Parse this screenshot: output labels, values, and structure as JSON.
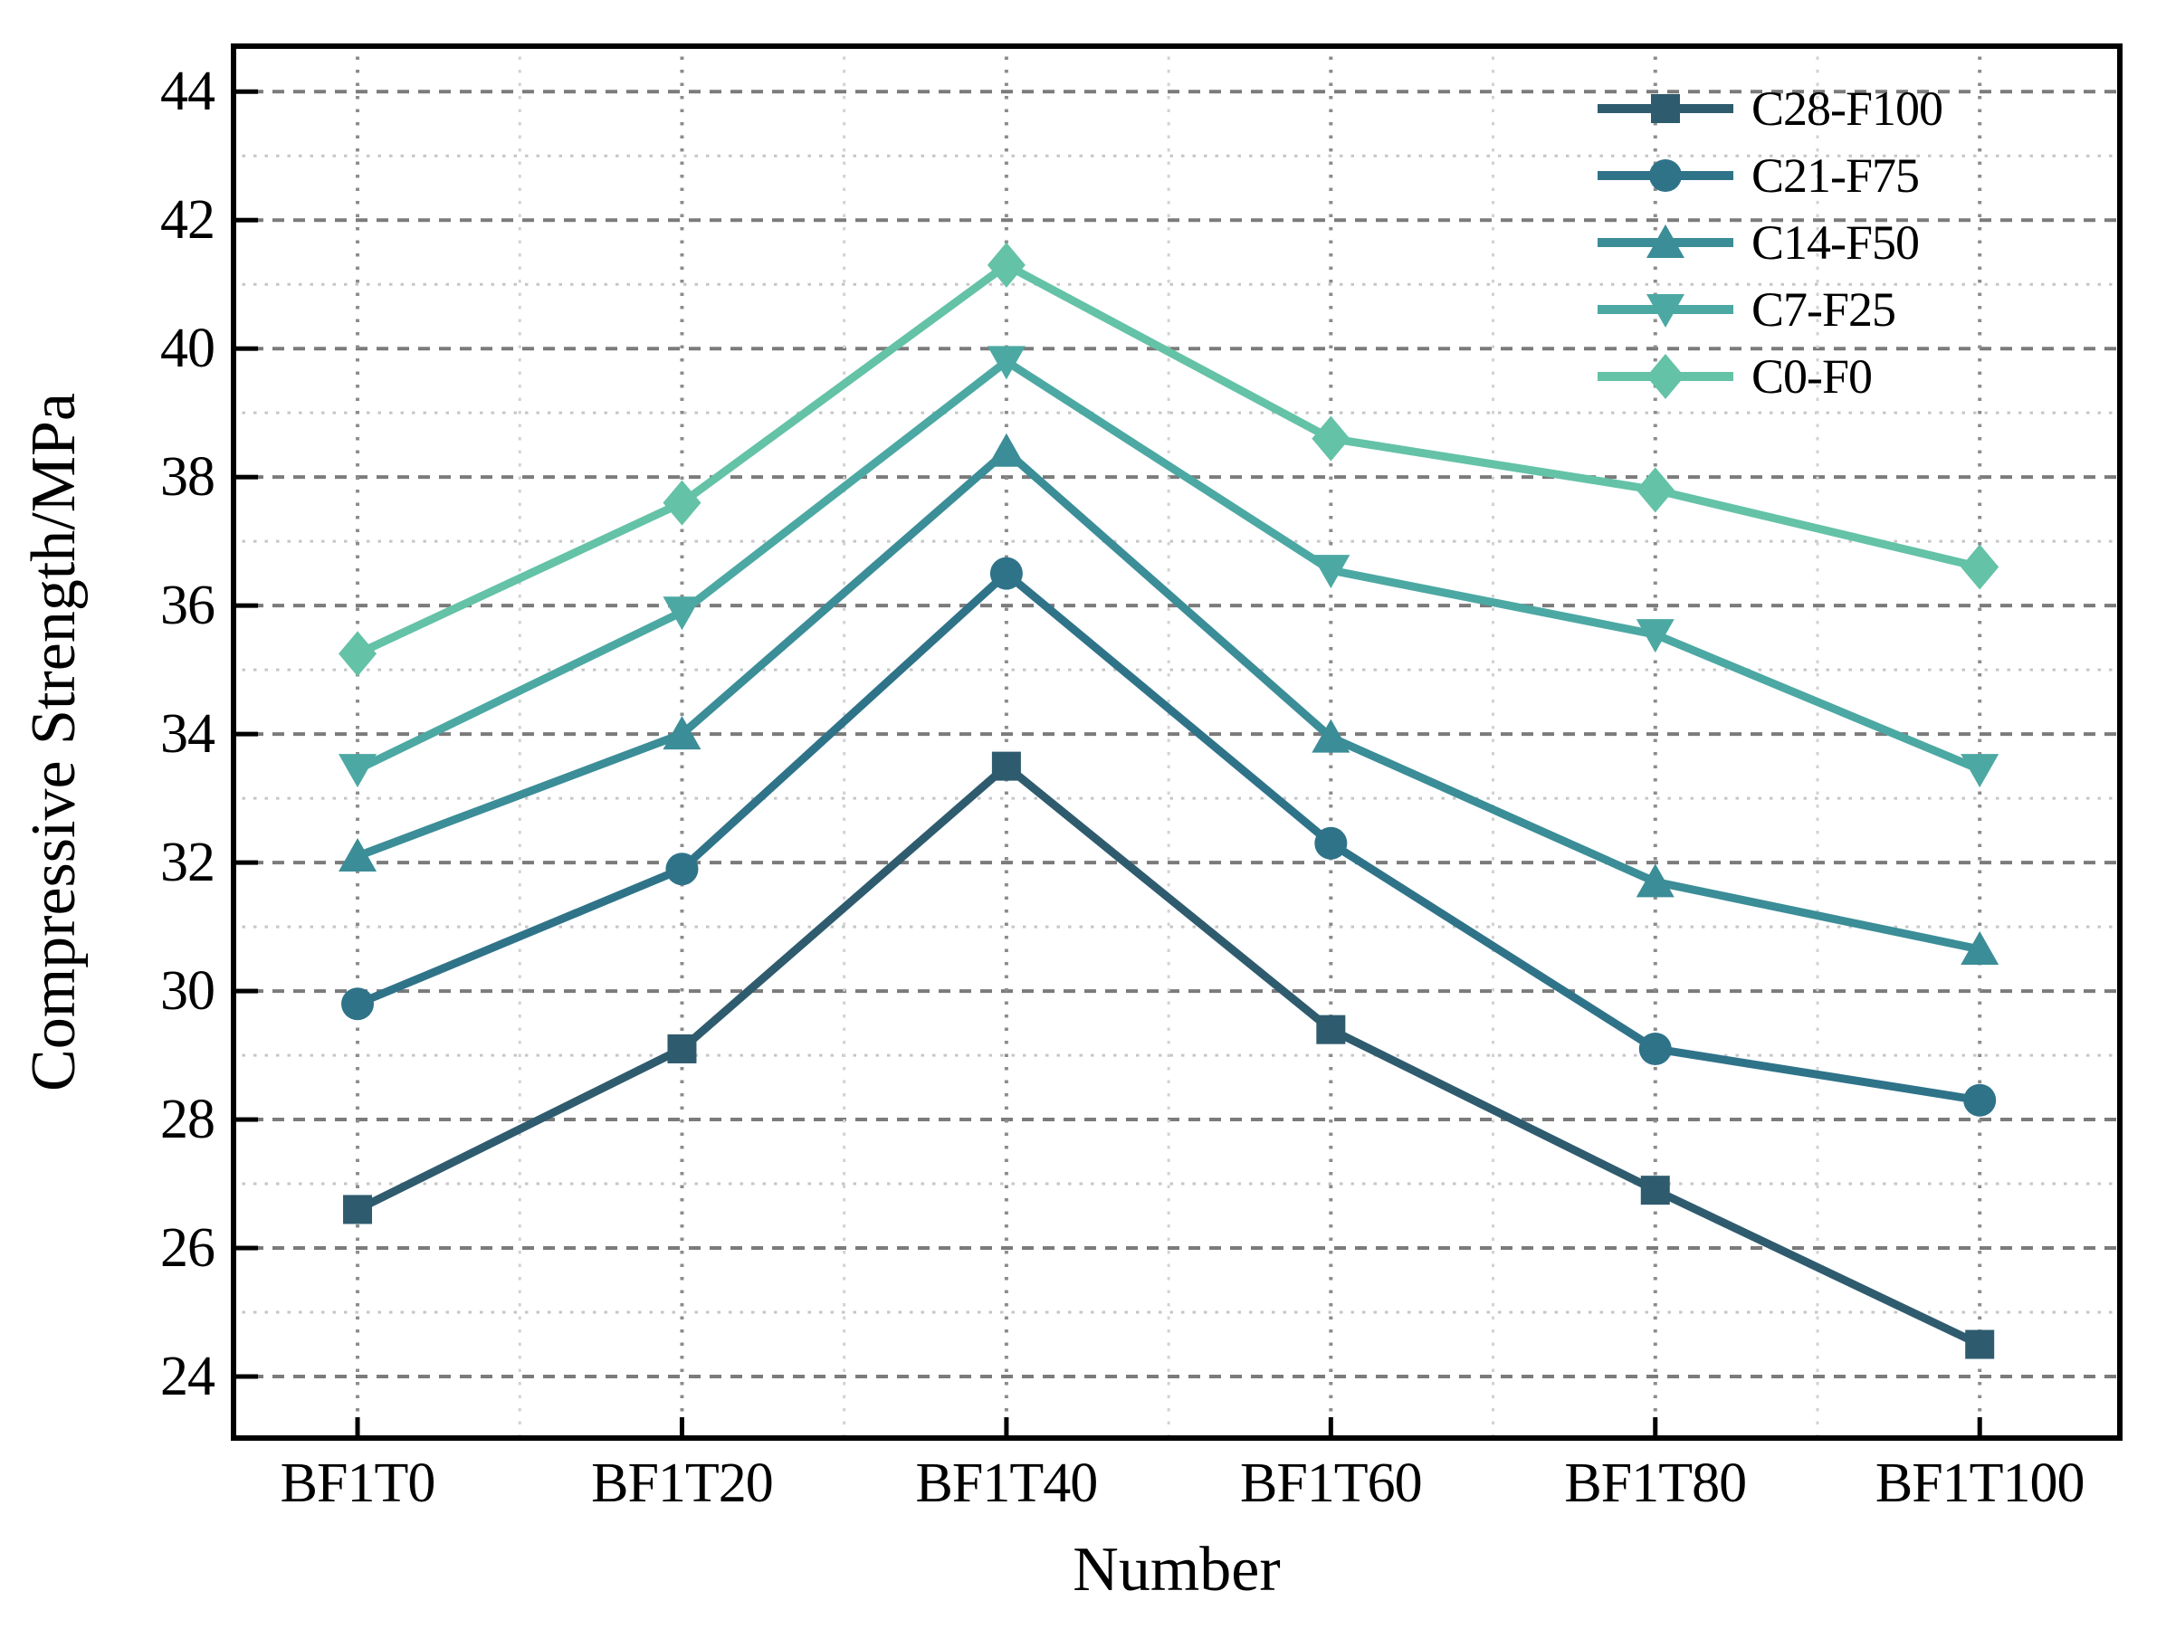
{
  "figure": {
    "background": "#ffffff"
  },
  "chart_data": {
    "type": "line",
    "title": "",
    "xlabel": "Number",
    "ylabel": "Compressive Strength/MPa",
    "categories": [
      "BF1T0",
      "BF1T20",
      "BF1T40",
      "BF1T60",
      "BF1T80",
      "BF1T100"
    ],
    "series": [
      {
        "name": "C28-F100",
        "marker": "square",
        "color": "#2F5B6E",
        "values": [
          26.6,
          29.1,
          33.5,
          29.4,
          26.9,
          24.5
        ]
      },
      {
        "name": "C21-F75",
        "marker": "circle",
        "color": "#2F7389",
        "values": [
          29.8,
          31.9,
          36.5,
          32.3,
          29.1,
          28.3
        ]
      },
      {
        "name": "C14-F50",
        "marker": "triangle-up",
        "color": "#3B8D97",
        "values": [
          32.1,
          34.0,
          38.4,
          33.95,
          31.7,
          30.65
        ]
      },
      {
        "name": "C7-F25",
        "marker": "triangle-down",
        "color": "#4CA8A3",
        "values": [
          33.45,
          35.9,
          39.8,
          36.55,
          35.55,
          33.45
        ]
      },
      {
        "name": "C0-F0",
        "marker": "diamond",
        "color": "#64C2A6",
        "values": [
          35.25,
          37.6,
          41.3,
          38.6,
          37.8,
          36.6
        ]
      }
    ],
    "ylim": [
      23,
      44.75
    ],
    "yticks": [
      24,
      26,
      28,
      30,
      32,
      34,
      36,
      38,
      40,
      42,
      44
    ],
    "minor_gridlines_y": [
      25,
      27,
      29,
      31,
      33,
      35,
      37,
      39,
      41,
      43
    ],
    "grid": {
      "horizontal": "on",
      "vertical": "on",
      "style": "dotted"
    },
    "legend_position": "upper right",
    "legend_frame": "off"
  },
  "style_colors": {
    "major_grid": "#7b7b7b",
    "minor_grid": "#c6c6c6",
    "category_grid": "#8c8c8c",
    "midpoint_grid": "#d2d2d2",
    "frame": "#000000"
  }
}
